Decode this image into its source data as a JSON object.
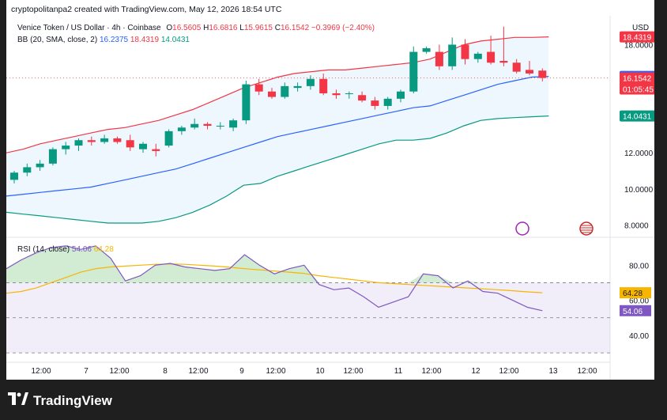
{
  "header": {
    "title": "cryptopolitanpa2 created with TradingView.com, May 12, 2026 18:54 UTC"
  },
  "symbol": {
    "name": "Venice Token / US Dollar · 4h · Coinbase",
    "open_label": "O",
    "open": "16.5605",
    "high_label": "H",
    "high": "16.6816",
    "low_label": "L",
    "low": "15.9615",
    "close_label": "C",
    "close": "16.1542",
    "change": "−0.3969 (−2.40%)"
  },
  "currency": "USD",
  "bb": {
    "label": "BB (20, SMA, close, 2)",
    "basis": "16.2375",
    "upper": "18.4319",
    "lower": "14.0431"
  },
  "rsi": {
    "label": "RSI (14, close)",
    "value": "54.06",
    "ma": "64.28"
  },
  "price_tags": {
    "upper": "18.4319",
    "basis": "16.2375",
    "close": "16.1542",
    "countdown": "01:05:45",
    "lower": "14.0431"
  },
  "colors": {
    "up": "#089981",
    "down": "#f23645",
    "basis": "#2962ff",
    "upper_band": "#f23645",
    "lower_band": "#089981",
    "rsi": "#7e57c2",
    "rsi_ma": "#f7b500"
  },
  "logo": {
    "text": "TradingView"
  },
  "chart_data": [
    {
      "type": "candlestick",
      "price_axis_ticks": [
        "8.0000",
        "10.0000",
        "12.0000",
        "14.0000",
        "16.0000",
        "18.0000"
      ],
      "ylim": [
        7.4,
        19.6
      ],
      "time_axis_ticks": [
        "12:00",
        "7",
        "12:00",
        "8",
        "12:00",
        "9",
        "12:00",
        "10",
        "12:00",
        "11",
        "12:00",
        "12",
        "12:00",
        "13",
        "12:00"
      ],
      "candles": [
        [
          10.5,
          11.0,
          10.3,
          10.9
        ],
        [
          10.9,
          11.4,
          10.7,
          11.2
        ],
        [
          11.2,
          11.6,
          11.0,
          11.4
        ],
        [
          11.4,
          12.3,
          11.3,
          12.2
        ],
        [
          12.2,
          12.6,
          11.9,
          12.4
        ],
        [
          12.4,
          12.8,
          12.1,
          12.7
        ],
        [
          12.7,
          12.9,
          12.4,
          12.6
        ],
        [
          12.6,
          13.0,
          12.5,
          12.8
        ],
        [
          12.8,
          12.9,
          12.5,
          12.6
        ],
        [
          12.7,
          13.0,
          12.1,
          12.3
        ],
        [
          12.2,
          12.6,
          12.0,
          12.5
        ],
        [
          12.2,
          12.5,
          11.8,
          12.1
        ],
        [
          12.4,
          13.3,
          12.3,
          13.2
        ],
        [
          13.2,
          13.5,
          13.0,
          13.4
        ],
        [
          13.4,
          13.9,
          13.3,
          13.6
        ],
        [
          13.6,
          13.7,
          13.3,
          13.5
        ],
        [
          13.5,
          13.7,
          13.3,
          13.5
        ],
        [
          13.4,
          13.9,
          13.2,
          13.8
        ],
        [
          13.8,
          16.0,
          13.6,
          15.8
        ],
        [
          15.8,
          16.1,
          15.2,
          15.4
        ],
        [
          15.4,
          15.6,
          15.0,
          15.1
        ],
        [
          15.1,
          15.9,
          15.0,
          15.7
        ],
        [
          15.6,
          15.9,
          15.4,
          15.7
        ],
        [
          15.7,
          16.3,
          15.5,
          16.1
        ],
        [
          16.1,
          16.4,
          15.2,
          15.3
        ],
        [
          15.3,
          15.5,
          15.0,
          15.2
        ],
        [
          15.3,
          15.4,
          15.0,
          15.3
        ],
        [
          15.2,
          15.4,
          14.8,
          14.9
        ],
        [
          14.9,
          15.1,
          14.4,
          14.6
        ],
        [
          14.6,
          15.1,
          14.4,
          15.0
        ],
        [
          15.0,
          15.5,
          14.8,
          15.4
        ],
        [
          15.4,
          17.9,
          15.3,
          17.6
        ],
        [
          17.6,
          17.9,
          17.5,
          17.8
        ],
        [
          17.6,
          18.0,
          16.6,
          16.8
        ],
        [
          16.8,
          18.4,
          16.6,
          18.0
        ],
        [
          18.0,
          18.3,
          16.9,
          17.2
        ],
        [
          17.2,
          17.6,
          17.0,
          17.5
        ],
        [
          17.6,
          18.5,
          16.9,
          17.0
        ],
        [
          17.1,
          19.0,
          16.8,
          17.0
        ],
        [
          17.0,
          17.2,
          16.4,
          16.5
        ],
        [
          16.6,
          17.1,
          16.3,
          16.4
        ],
        [
          16.5605,
          16.6816,
          15.9615,
          16.1542
        ]
      ],
      "bb_upper": [
        12.0,
        12.2,
        12.5,
        12.7,
        12.9,
        13.1,
        13.3,
        13.4,
        13.6,
        13.8,
        14.1,
        14.4,
        14.8,
        15.2,
        15.6,
        15.9,
        16.2,
        16.4,
        16.5,
        16.6,
        16.6,
        16.7,
        16.8,
        16.9,
        17.0,
        17.2,
        17.6,
        18.0,
        18.2,
        18.3,
        18.4,
        18.4,
        18.4319
      ],
      "bb_basis": [
        9.6,
        9.7,
        9.8,
        9.9,
        10.0,
        10.1,
        10.3,
        10.5,
        10.7,
        10.9,
        11.1,
        11.4,
        11.7,
        12.0,
        12.3,
        12.6,
        12.9,
        13.1,
        13.3,
        13.5,
        13.7,
        13.9,
        14.1,
        14.3,
        14.5,
        14.6,
        14.9,
        15.2,
        15.5,
        15.8,
        16.0,
        16.2,
        16.2375
      ],
      "bb_lower": [
        8.7,
        8.6,
        8.5,
        8.4,
        8.3,
        8.2,
        8.1,
        8.1,
        8.1,
        8.2,
        8.4,
        8.7,
        9.1,
        9.6,
        10.2,
        10.3,
        10.7,
        11.0,
        11.3,
        11.6,
        11.9,
        12.2,
        12.5,
        12.7,
        12.7,
        12.8,
        13.1,
        13.5,
        13.8,
        13.9,
        13.95,
        14.0,
        14.0431
      ]
    },
    {
      "type": "line",
      "title": "RSI (14, close)",
      "yticks": [
        "80.00",
        "60.00",
        "40.00"
      ],
      "ylim": [
        26,
        95
      ],
      "bands": [
        70,
        50,
        30
      ],
      "rsi": [
        78,
        83,
        87,
        90,
        91,
        89,
        91,
        84,
        71,
        74,
        80,
        81,
        79,
        78,
        77,
        78,
        86,
        80,
        75,
        78,
        80,
        69,
        66,
        67,
        62,
        56,
        59,
        62,
        75,
        74,
        67,
        71,
        65,
        64,
        60,
        56,
        54.06
      ],
      "rsi_ma": [
        64,
        65,
        67,
        70,
        73,
        76,
        78,
        79,
        79.5,
        80,
        80.5,
        80.7,
        80.5,
        80,
        79.5,
        78.8,
        78,
        77.3,
        76.7,
        76,
        75.3,
        74,
        73,
        72,
        71,
        70,
        69.5,
        69,
        68.5,
        68,
        67.5,
        67,
        66.5,
        66,
        65.4,
        64.8,
        64.28
      ]
    }
  ]
}
